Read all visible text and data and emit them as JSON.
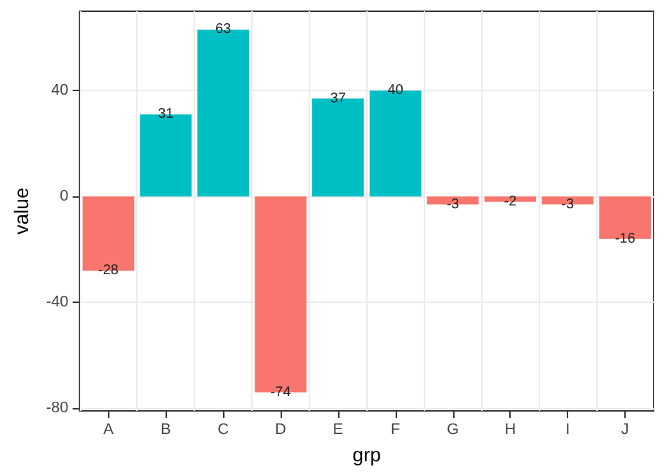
{
  "chart_data": {
    "type": "bar",
    "xlabel": "grp",
    "ylabel": "value",
    "categories": [
      "A",
      "B",
      "C",
      "D",
      "E",
      "F",
      "G",
      "H",
      "I",
      "J"
    ],
    "values": [
      -28,
      31,
      63,
      -74,
      37,
      40,
      -3,
      -2,
      -3,
      -16
    ],
    "colors": [
      "#f8766d",
      "#00bfc4",
      "#00bfc4",
      "#f8766d",
      "#00bfc4",
      "#00bfc4",
      "#f8766d",
      "#f8766d",
      "#f8766d",
      "#f8766d"
    ],
    "ylim": [
      -81,
      70
    ],
    "yticks": [
      -80,
      -40,
      0,
      40
    ],
    "grid": true,
    "data_labels": true
  }
}
